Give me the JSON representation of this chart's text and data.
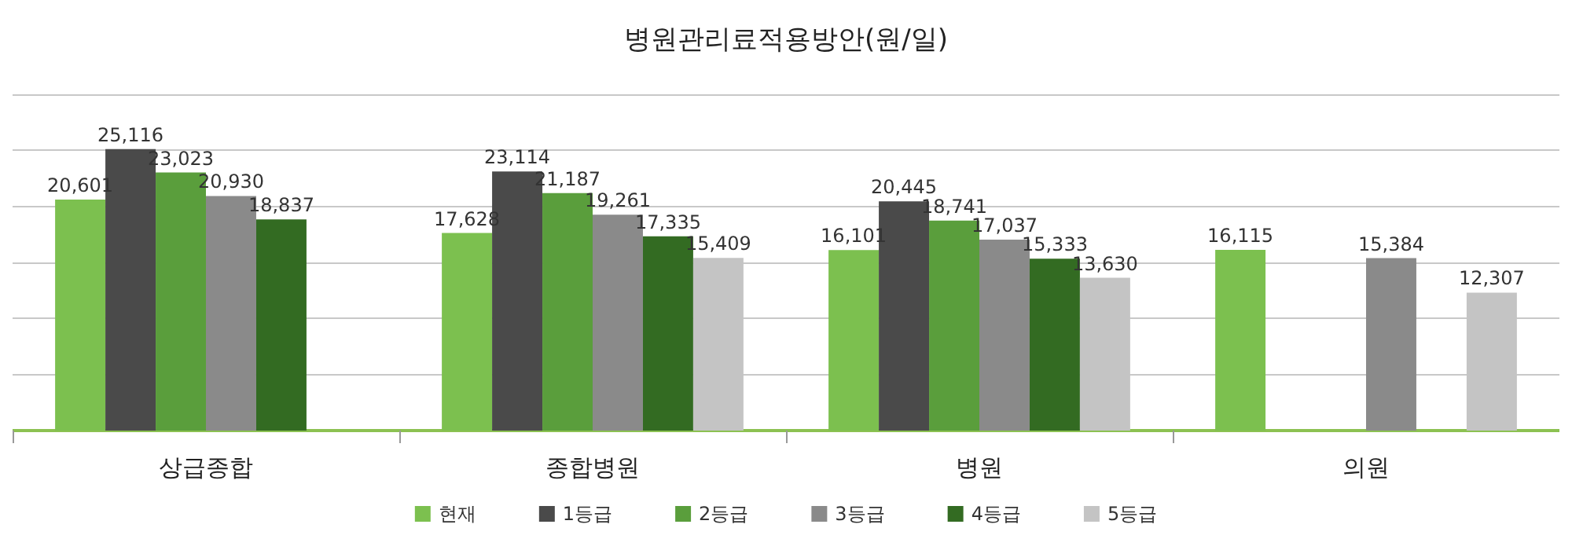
{
  "chart_data": {
    "type": "bar",
    "title": "병원관리료적용방안(원/일)",
    "categories": [
      "상급종합",
      "종합병원",
      "병원",
      "의원"
    ],
    "series": [
      {
        "name": "현재",
        "color": "#7cc04f",
        "values": [
          20601,
          17628,
          16101,
          16115
        ],
        "value_labels": [
          "20,601",
          "17,628",
          "16,101",
          "16,115"
        ]
      },
      {
        "name": "1등급",
        "color": "#4a4a4a",
        "values": [
          25116,
          23114,
          20445,
          null
        ],
        "value_labels": [
          "25,116",
          "23,114",
          "20,445",
          null
        ]
      },
      {
        "name": "2등급",
        "color": "#5a9e3c",
        "values": [
          23023,
          21187,
          18741,
          null
        ],
        "value_labels": [
          "23,023",
          "21,187",
          "18,741",
          null
        ]
      },
      {
        "name": "3등급",
        "color": "#8a8a8a",
        "values": [
          20930,
          19261,
          17037,
          15384
        ],
        "value_labels": [
          "20,930",
          "19,261",
          "17,037",
          "15,384"
        ]
      },
      {
        "name": "4등급",
        "color": "#336b22",
        "values": [
          18837,
          17335,
          15333,
          null
        ],
        "value_labels": [
          "18,837",
          "17,335",
          "15,333",
          null
        ]
      },
      {
        "name": "5등급",
        "color": "#c4c4c4",
        "values": [
          null,
          15409,
          13630,
          12307
        ],
        "value_labels": [
          null,
          "15,409",
          "13,630",
          "12,307"
        ]
      }
    ],
    "grid": "y",
    "legend": "bottom",
    "tick_labels": "x"
  }
}
